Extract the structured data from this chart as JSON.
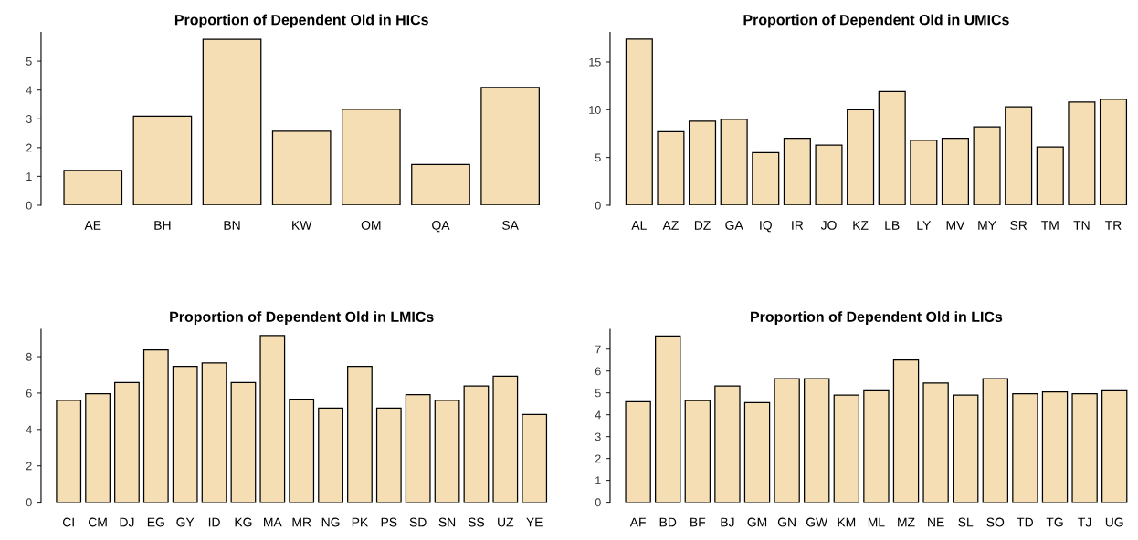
{
  "chart_data": [
    {
      "type": "bar",
      "title": "Proportion of Dependent Old in HICs",
      "categories": [
        "AE",
        "BH",
        "BN",
        "KW",
        "OM",
        "QA",
        "SA"
      ],
      "values": [
        1.21,
        3.09,
        5.76,
        2.57,
        3.33,
        1.41,
        4.09
      ],
      "color": "#f5deb3",
      "ylim": [
        0,
        6
      ],
      "yticks": [
        0,
        1,
        2,
        3,
        4,
        5
      ],
      "grid": false
    },
    {
      "type": "bar",
      "title": "Proportion of Dependent Old in UMICs",
      "categories": [
        "AL",
        "AZ",
        "DZ",
        "GA",
        "IQ",
        "IR",
        "JO",
        "KZ",
        "LB",
        "LY",
        "MV",
        "MY",
        "SR",
        "TM",
        "TN",
        "TR"
      ],
      "values": [
        17.4,
        7.7,
        8.8,
        9.0,
        5.5,
        7.0,
        6.3,
        10.0,
        11.9,
        6.8,
        7.0,
        8.2,
        10.3,
        6.1,
        10.8,
        11.1
      ],
      "color": "#f5deb3",
      "ylim": [
        0,
        18.1
      ],
      "yticks": [
        0,
        5,
        10,
        15
      ],
      "grid": false
    },
    {
      "type": "bar",
      "title": "Proportion of Dependent Old in LMICs",
      "categories": [
        "CI",
        "CM",
        "DJ",
        "EG",
        "GY",
        "ID",
        "KG",
        "MA",
        "MR",
        "NG",
        "PK",
        "PS",
        "SD",
        "SN",
        "SS",
        "UZ",
        "YE"
      ],
      "values": [
        5.6,
        5.97,
        6.58,
        8.37,
        7.47,
        7.66,
        6.58,
        9.16,
        5.66,
        5.18,
        7.47,
        5.18,
        5.91,
        5.6,
        6.39,
        6.93,
        4.82
      ],
      "color": "#f5deb3",
      "ylim": [
        0,
        9.5
      ],
      "yticks": [
        0,
        2,
        4,
        6,
        8
      ],
      "grid": false
    },
    {
      "type": "bar",
      "title": "Proportion of Dependent Old in LICs",
      "categories": [
        "AF",
        "BD",
        "BF",
        "BJ",
        "GM",
        "GN",
        "GW",
        "KM",
        "ML",
        "MZ",
        "NE",
        "SL",
        "SO",
        "TD",
        "TG",
        "TJ",
        "UG"
      ],
      "values": [
        4.6,
        7.6,
        4.65,
        5.31,
        4.55,
        5.65,
        5.65,
        4.9,
        5.1,
        6.5,
        5.45,
        4.9,
        5.65,
        4.96,
        5.04,
        4.96,
        5.1
      ],
      "color": "#f5deb3",
      "ylim": [
        0,
        7.9
      ],
      "yticks": [
        0,
        1,
        2,
        3,
        4,
        5,
        6,
        7
      ],
      "grid": false
    }
  ]
}
